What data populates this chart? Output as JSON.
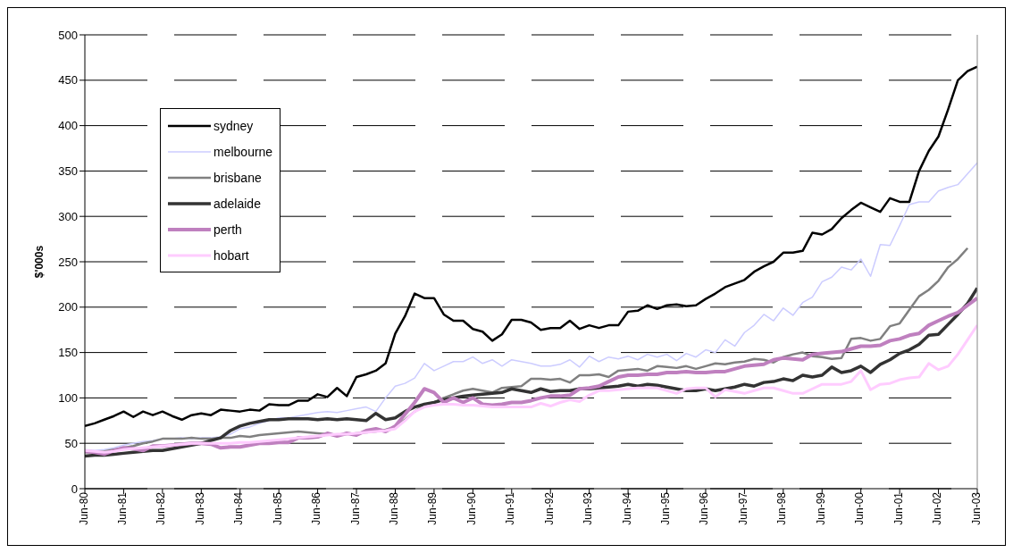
{
  "chart_data": {
    "type": "line",
    "ylabel": "$'000s",
    "categories": [
      "Jun-80",
      null,
      null,
      null,
      "Jun-81",
      null,
      null,
      null,
      "Jun-82",
      null,
      null,
      null,
      "Jun-83",
      null,
      null,
      null,
      "Jun-84",
      null,
      null,
      null,
      "Jun-85",
      null,
      null,
      null,
      "Jun-86",
      null,
      null,
      null,
      "Jun-87",
      null,
      null,
      null,
      "Jun-88",
      null,
      null,
      null,
      "Jun-89",
      null,
      null,
      null,
      "Jun-90",
      null,
      null,
      null,
      "Jun-91",
      null,
      null,
      null,
      "Jun-92",
      null,
      null,
      null,
      "Jun-93",
      null,
      null,
      null,
      "Jun-94",
      null,
      null,
      null,
      "Jun-95",
      null,
      null,
      null,
      "Jun-96",
      null,
      null,
      null,
      "Jun-97",
      null,
      null,
      null,
      "Jun-98",
      null,
      null,
      null,
      "Jun-99",
      null,
      null,
      null,
      "Jun-00",
      null,
      null,
      null,
      "Jun-01",
      null,
      null,
      null,
      "Jun-02",
      null,
      null,
      null,
      "Jun-03"
    ],
    "ylim": [
      0,
      500
    ],
    "yticks": [
      0,
      50,
      100,
      150,
      200,
      250,
      300,
      350,
      400,
      450,
      500
    ],
    "grid": "y",
    "legend": "top left",
    "marker": "none",
    "series": [
      {
        "name": "sydney",
        "color": "#000000",
        "values": [
          69,
          72,
          76,
          80,
          85,
          79,
          85,
          81,
          85,
          80,
          76,
          81,
          83,
          81,
          87,
          86,
          85,
          87,
          86,
          93,
          92,
          92,
          97,
          97,
          104,
          101,
          111,
          102,
          123,
          126,
          130,
          138,
          171,
          190,
          215,
          210,
          210,
          192,
          185,
          185,
          176,
          173,
          163,
          170,
          186,
          186,
          183,
          175,
          177,
          177,
          185,
          176,
          180,
          177,
          180,
          180,
          195,
          196,
          202,
          198,
          202,
          203,
          201,
          202,
          209,
          215,
          222,
          226,
          230,
          239,
          245,
          250,
          260,
          260,
          262,
          282,
          280,
          286,
          298,
          307,
          315,
          310,
          305,
          320,
          316,
          316,
          350,
          372,
          388,
          418,
          450,
          460,
          465
        ]
      },
      {
        "name": "melbourne",
        "color": "#ccccff",
        "values": [
          43,
          42,
          43,
          45,
          48,
          50,
          52,
          53,
          55,
          55,
          56,
          55,
          56,
          56,
          57,
          60,
          66,
          68,
          72,
          75,
          78,
          78,
          80,
          82,
          84,
          85,
          84,
          86,
          88,
          90,
          85,
          100,
          113,
          116,
          122,
          138,
          130,
          135,
          140,
          140,
          145,
          138,
          142,
          135,
          142,
          140,
          138,
          135,
          135,
          137,
          142,
          134,
          146,
          140,
          145,
          143,
          146,
          142,
          148,
          145,
          148,
          141,
          149,
          145,
          153,
          150,
          164,
          157,
          172,
          180,
          192,
          185,
          199,
          191,
          205,
          211,
          228,
          233,
          244,
          241,
          253,
          234,
          269,
          268,
          290,
          313,
          316,
          316,
          328,
          332,
          335,
          347,
          359
        ]
      },
      {
        "name": "brisbane",
        "color": "#808080",
        "values": [
          40,
          40,
          41,
          43,
          45,
          47,
          50,
          52,
          55,
          55,
          55,
          56,
          55,
          55,
          56,
          56,
          58,
          57,
          59,
          60,
          61,
          62,
          63,
          62,
          61,
          60,
          59,
          60,
          61,
          62,
          63,
          65,
          68,
          76,
          85,
          92,
          95,
          100,
          104,
          108,
          110,
          108,
          106,
          111,
          112,
          113,
          121,
          121,
          120,
          121,
          117,
          125,
          125,
          126,
          123,
          130,
          131,
          132,
          130,
          135,
          134,
          133,
          135,
          132,
          135,
          138,
          137,
          139,
          140,
          143,
          142,
          139,
          145,
          148,
          150,
          146,
          145,
          143,
          144,
          165,
          166,
          163,
          165,
          179,
          182,
          197,
          212,
          219,
          229,
          244,
          253,
          265,
          null
        ]
      },
      {
        "name": "adelaide",
        "color": "#333333",
        "values": [
          36,
          37,
          37,
          38,
          39,
          40,
          41,
          42,
          42,
          44,
          46,
          48,
          50,
          53,
          56,
          64,
          69,
          72,
          74,
          76,
          76,
          77,
          77,
          77,
          76,
          77,
          76,
          77,
          76,
          75,
          83,
          76,
          78,
          85,
          90,
          93,
          95,
          98,
          100,
          102,
          103,
          104,
          105,
          106,
          110,
          108,
          106,
          110,
          107,
          108,
          108,
          110,
          110,
          111,
          112,
          113,
          115,
          113,
          115,
          114,
          112,
          110,
          108,
          108,
          110,
          108,
          110,
          112,
          115,
          113,
          117,
          118,
          121,
          119,
          125,
          123,
          125,
          134,
          128,
          130,
          135,
          128,
          137,
          142,
          149,
          153,
          159,
          169,
          170,
          181,
          192,
          204,
          221
        ]
      },
      {
        "name": "perth",
        "color": "#bf80bf",
        "values": [
          41,
          40,
          38,
          42,
          45,
          44,
          42,
          47,
          47,
          48,
          49,
          50,
          50,
          49,
          45,
          46,
          46,
          48,
          50,
          50,
          51,
          51,
          56,
          56,
          57,
          61,
          58,
          61,
          59,
          64,
          66,
          63,
          69,
          82,
          95,
          110,
          106,
          95,
          100,
          95,
          100,
          93,
          92,
          93,
          95,
          95,
          97,
          100,
          102,
          102,
          103,
          110,
          111,
          113,
          118,
          123,
          125,
          125,
          126,
          126,
          128,
          128,
          129,
          128,
          128,
          129,
          129,
          132,
          135,
          136,
          137,
          142,
          144,
          143,
          142,
          148,
          149,
          150,
          151,
          154,
          157,
          157,
          158,
          163,
          165,
          169,
          171,
          180,
          185,
          190,
          194,
          202,
          210
        ]
      },
      {
        "name": "hobart",
        "color": "#ffccff",
        "values": [
          42,
          41,
          40,
          41,
          43,
          44,
          45,
          46,
          47,
          48,
          49,
          50,
          50,
          50,
          50,
          50,
          51,
          51,
          52,
          53,
          54,
          55,
          56,
          57,
          58,
          59,
          60,
          60,
          61,
          62,
          63,
          64,
          66,
          75,
          85,
          90,
          92,
          93,
          93,
          92,
          92,
          91,
          90,
          90,
          90,
          90,
          90,
          94,
          91,
          95,
          98,
          96,
          103,
          108,
          108,
          109,
          110,
          111,
          111,
          111,
          108,
          105,
          110,
          111,
          111,
          101,
          109,
          107,
          105,
          108,
          111,
          111,
          108,
          105,
          105,
          110,
          115,
          115,
          115,
          118,
          130,
          109,
          115,
          116,
          120,
          122,
          123,
          138,
          131,
          135,
          148,
          164,
          180
        ]
      }
    ]
  }
}
